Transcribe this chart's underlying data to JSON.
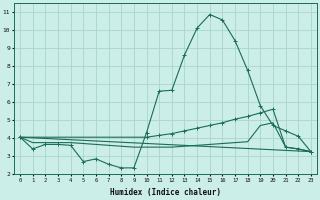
{
  "xlabel": "Humidex (Indice chaleur)",
  "xlim": [
    -0.5,
    23.5
  ],
  "ylim": [
    2,
    11.5
  ],
  "xticks": [
    0,
    1,
    2,
    3,
    4,
    5,
    6,
    7,
    8,
    9,
    10,
    11,
    12,
    13,
    14,
    15,
    16,
    17,
    18,
    19,
    20,
    21,
    22,
    23
  ],
  "yticks": [
    2,
    3,
    4,
    5,
    6,
    7,
    8,
    9,
    10,
    11
  ],
  "bg_color": "#cceee8",
  "grid_color": "#aad4cc",
  "line_color": "#1a6b5a",
  "curve_main": {
    "x": [
      0,
      1,
      2,
      3,
      4,
      5,
      6,
      7,
      8,
      9,
      10,
      11,
      12,
      13,
      14,
      15,
      16,
      17,
      18,
      19,
      20,
      21,
      22,
      23
    ],
    "y": [
      4.05,
      3.4,
      3.65,
      3.65,
      3.6,
      2.7,
      2.85,
      2.55,
      2.35,
      2.35,
      4.3,
      6.6,
      6.65,
      8.6,
      10.1,
      10.85,
      10.55,
      9.4,
      7.75,
      5.8,
      4.7,
      4.4,
      4.1,
      3.25
    ]
  },
  "curve_rising": {
    "x": [
      0,
      10,
      11,
      12,
      13,
      14,
      15,
      16,
      17,
      18,
      19,
      20,
      21,
      22,
      23
    ],
    "y": [
      4.05,
      4.05,
      4.15,
      4.25,
      4.4,
      4.55,
      4.7,
      4.85,
      5.05,
      5.2,
      5.4,
      5.6,
      3.5,
      3.4,
      3.25
    ]
  },
  "curve_flat": {
    "x": [
      0,
      1,
      2,
      3,
      4,
      5,
      6,
      7,
      8,
      9,
      10,
      11,
      12,
      13,
      14,
      15,
      16,
      17,
      18,
      19,
      20,
      21,
      22,
      23
    ],
    "y": [
      4.05,
      3.75,
      3.75,
      3.75,
      3.75,
      3.7,
      3.65,
      3.6,
      3.55,
      3.5,
      3.5,
      3.5,
      3.5,
      3.55,
      3.6,
      3.65,
      3.7,
      3.75,
      3.8,
      4.7,
      4.85,
      3.5,
      3.4,
      3.25
    ]
  },
  "curve_diagonal": {
    "x": [
      0,
      23
    ],
    "y": [
      4.05,
      3.25
    ]
  }
}
